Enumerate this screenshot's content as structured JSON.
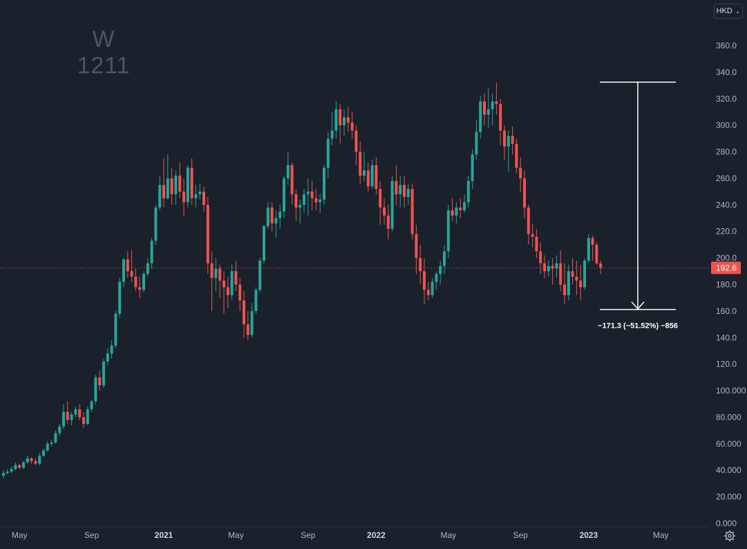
{
  "symbol": {
    "interval": "W",
    "ticker": "1211"
  },
  "toolbar": {
    "currency_label": "HKD",
    "currency_icon": "chevron-down-icon",
    "settings_icon": "gear-icon"
  },
  "colors": {
    "up": "#26a69a",
    "down": "#ef5350",
    "background": "#1a212b",
    "axis_text": "#b2b5be",
    "measure": "#ffffff",
    "last_price_bg": "#ef5350"
  },
  "measure_tool": {
    "start_price": 332.5,
    "end_price": 161.2,
    "label": "−171.3 (−51.52%) −856"
  },
  "chart_data": {
    "type": "candlestick",
    "y_axis": {
      "range": [
        0,
        372
      ],
      "ticks": [
        {
          "value": 0,
          "label": "0.000"
        },
        {
          "value": 20,
          "label": "20.000"
        },
        {
          "value": 40,
          "label": "40.000"
        },
        {
          "value": 60,
          "label": "60.000"
        },
        {
          "value": 80,
          "label": "80.000"
        },
        {
          "value": 100,
          "label": "100.000"
        },
        {
          "value": 120,
          "label": "120.0"
        },
        {
          "value": 140,
          "label": "140.0"
        },
        {
          "value": 160,
          "label": "160.0"
        },
        {
          "value": 180,
          "label": "180.0"
        },
        {
          "value": 200,
          "label": "200.0"
        },
        {
          "value": 220,
          "label": "220.0"
        },
        {
          "value": 240,
          "label": "240.0"
        },
        {
          "value": 260,
          "label": "260.0"
        },
        {
          "value": 280,
          "label": "280.0"
        },
        {
          "value": 300,
          "label": "300.0"
        },
        {
          "value": 320,
          "label": "320.0"
        },
        {
          "value": 340,
          "label": "340.0"
        },
        {
          "value": 360,
          "label": "360.0"
        }
      ]
    },
    "x_axis": {
      "ticks": [
        {
          "label": "May",
          "bar": 4,
          "bold": false
        },
        {
          "label": "Sep",
          "bar": 22,
          "bold": false
        },
        {
          "label": "2021",
          "bar": 40,
          "bold": true
        },
        {
          "label": "May",
          "bar": 58,
          "bold": false
        },
        {
          "label": "Sep",
          "bar": 76,
          "bold": false
        },
        {
          "label": "2022",
          "bar": 93,
          "bold": true
        },
        {
          "label": "May",
          "bar": 111,
          "bold": false
        },
        {
          "label": "Sep",
          "bar": 129,
          "bold": false
        },
        {
          "label": "2023",
          "bar": 146,
          "bold": true
        },
        {
          "label": "May",
          "bar": 164,
          "bold": false
        }
      ]
    },
    "last_price": {
      "value": 192.6,
      "label": "192.6"
    },
    "candles": [
      [
        36,
        40,
        34,
        38
      ],
      [
        38,
        41,
        37,
        39
      ],
      [
        39,
        43,
        38,
        41
      ],
      [
        41,
        46,
        40,
        44
      ],
      [
        44,
        45,
        41,
        42
      ],
      [
        42,
        47,
        41,
        46
      ],
      [
        46,
        51,
        45,
        49
      ],
      [
        49,
        50,
        45,
        47
      ],
      [
        47,
        49,
        44,
        45
      ],
      [
        45,
        53,
        44,
        51
      ],
      [
        51,
        56,
        50,
        55
      ],
      [
        55,
        62,
        54,
        60
      ],
      [
        60,
        63,
        58,
        61
      ],
      [
        61,
        70,
        60,
        68
      ],
      [
        68,
        75,
        66,
        73
      ],
      [
        73,
        90,
        71,
        84
      ],
      [
        84,
        92,
        75,
        78
      ],
      [
        78,
        84,
        74,
        82
      ],
      [
        82,
        88,
        80,
        86
      ],
      [
        86,
        90,
        78,
        80
      ],
      [
        80,
        84,
        72,
        75
      ],
      [
        75,
        88,
        74,
        86
      ],
      [
        86,
        93,
        84,
        92
      ],
      [
        92,
        112,
        90,
        110
      ],
      [
        110,
        115,
        100,
        104
      ],
      [
        104,
        124,
        102,
        122
      ],
      [
        122,
        132,
        119,
        128
      ],
      [
        128,
        138,
        124,
        134
      ],
      [
        134,
        160,
        132,
        158
      ],
      [
        158,
        185,
        155,
        182
      ],
      [
        182,
        200,
        178,
        199
      ],
      [
        199,
        205,
        185,
        190
      ],
      [
        190,
        206,
        182,
        186
      ],
      [
        186,
        192,
        175,
        178
      ],
      [
        178,
        186,
        170,
        176
      ],
      [
        176,
        190,
        174,
        188
      ],
      [
        188,
        200,
        186,
        196
      ],
      [
        196,
        215,
        192,
        213
      ],
      [
        213,
        240,
        210,
        238
      ],
      [
        238,
        262,
        236,
        255
      ],
      [
        255,
        275,
        238,
        245
      ],
      [
        245,
        278,
        244,
        260
      ],
      [
        260,
        268,
        240,
        248
      ],
      [
        248,
        266,
        240,
        262
      ],
      [
        262,
        272,
        245,
        250
      ],
      [
        250,
        260,
        232,
        242
      ],
      [
        242,
        270,
        238,
        268
      ],
      [
        268,
        275,
        240,
        245
      ],
      [
        245,
        255,
        238,
        248
      ],
      [
        248,
        256,
        244,
        250
      ],
      [
        250,
        254,
        235,
        240
      ],
      [
        240,
        246,
        188,
        196
      ],
      [
        196,
        205,
        160,
        185
      ],
      [
        185,
        200,
        175,
        192
      ],
      [
        192,
        195,
        170,
        183
      ],
      [
        183,
        190,
        158,
        178
      ],
      [
        178,
        186,
        162,
        172
      ],
      [
        172,
        195,
        168,
        190
      ],
      [
        190,
        198,
        175,
        180
      ],
      [
        180,
        185,
        160,
        168
      ],
      [
        168,
        175,
        140,
        150
      ],
      [
        150,
        160,
        138,
        142
      ],
      [
        142,
        166,
        140,
        160
      ],
      [
        160,
        178,
        158,
        176
      ],
      [
        176,
        200,
        174,
        198
      ],
      [
        198,
        225,
        196,
        224
      ],
      [
        224,
        242,
        222,
        238
      ],
      [
        238,
        242,
        220,
        226
      ],
      [
        226,
        236,
        215,
        230
      ],
      [
        230,
        240,
        222,
        235
      ],
      [
        235,
        262,
        230,
        260
      ],
      [
        260,
        280,
        255,
        270
      ],
      [
        270,
        272,
        240,
        248
      ],
      [
        248,
        252,
        228,
        238
      ],
      [
        238,
        244,
        226,
        240
      ],
      [
        240,
        252,
        234,
        248
      ],
      [
        248,
        260,
        232,
        250
      ],
      [
        250,
        258,
        236,
        245
      ],
      [
        245,
        252,
        236,
        242
      ],
      [
        242,
        248,
        234,
        244
      ],
      [
        244,
        270,
        240,
        268
      ],
      [
        268,
        295,
        260,
        290
      ],
      [
        290,
        310,
        285,
        296
      ],
      [
        296,
        318,
        290,
        312
      ],
      [
        312,
        316,
        286,
        300
      ],
      [
        300,
        312,
        292,
        306
      ],
      [
        306,
        314,
        295,
        302
      ],
      [
        302,
        310,
        290,
        296
      ],
      [
        296,
        300,
        270,
        280
      ],
      [
        280,
        288,
        256,
        262
      ],
      [
        262,
        280,
        258,
        266
      ],
      [
        266,
        272,
        250,
        254
      ],
      [
        254,
        274,
        252,
        270
      ],
      [
        270,
        276,
        248,
        252
      ],
      [
        252,
        258,
        225,
        238
      ],
      [
        238,
        245,
        225,
        232
      ],
      [
        232,
        240,
        214,
        222
      ],
      [
        222,
        262,
        220,
        258
      ],
      [
        258,
        270,
        240,
        248
      ],
      [
        248,
        262,
        238,
        255
      ],
      [
        255,
        262,
        238,
        246
      ],
      [
        246,
        256,
        240,
        252
      ],
      [
        252,
        256,
        214,
        218
      ],
      [
        218,
        225,
        188,
        200
      ],
      [
        200,
        210,
        180,
        190
      ],
      [
        190,
        200,
        165,
        176
      ],
      [
        176,
        182,
        168,
        172
      ],
      [
        172,
        185,
        170,
        182
      ],
      [
        182,
        190,
        176,
        188
      ],
      [
        188,
        198,
        180,
        194
      ],
      [
        194,
        210,
        188,
        205
      ],
      [
        205,
        240,
        200,
        236
      ],
      [
        236,
        245,
        228,
        232
      ],
      [
        232,
        242,
        226,
        238
      ],
      [
        238,
        245,
        230,
        236
      ],
      [
        236,
        248,
        234,
        242
      ],
      [
        242,
        262,
        238,
        258
      ],
      [
        258,
        282,
        252,
        278
      ],
      [
        278,
        304,
        274,
        295
      ],
      [
        295,
        322,
        290,
        318
      ],
      [
        318,
        324,
        300,
        308
      ],
      [
        308,
        328,
        298,
        312
      ],
      [
        312,
        324,
        300,
        318
      ],
      [
        318,
        332,
        308,
        316
      ],
      [
        316,
        320,
        285,
        296
      ],
      [
        296,
        300,
        274,
        284
      ],
      [
        284,
        296,
        265,
        292
      ],
      [
        292,
        299,
        278,
        286
      ],
      [
        286,
        290,
        264,
        268
      ],
      [
        268,
        276,
        250,
        260
      ],
      [
        260,
        266,
        230,
        238
      ],
      [
        238,
        240,
        210,
        218
      ],
      [
        218,
        226,
        208,
        216
      ],
      [
        216,
        222,
        200,
        205
      ],
      [
        205,
        212,
        188,
        196
      ],
      [
        196,
        202,
        185,
        190
      ],
      [
        190,
        198,
        186,
        194
      ],
      [
        194,
        200,
        180,
        192
      ],
      [
        192,
        202,
        185,
        196
      ],
      [
        196,
        206,
        175,
        180
      ],
      [
        180,
        196,
        165,
        172
      ],
      [
        172,
        195,
        168,
        190
      ],
      [
        190,
        200,
        180,
        186
      ],
      [
        186,
        198,
        172,
        183
      ],
      [
        183,
        195,
        168,
        178
      ],
      [
        178,
        200,
        176,
        198
      ],
      [
        198,
        218,
        196,
        215
      ],
      [
        215,
        217,
        198,
        210
      ],
      [
        210,
        212,
        195,
        196
      ],
      [
        196,
        198,
        188,
        192.6
      ]
    ]
  }
}
